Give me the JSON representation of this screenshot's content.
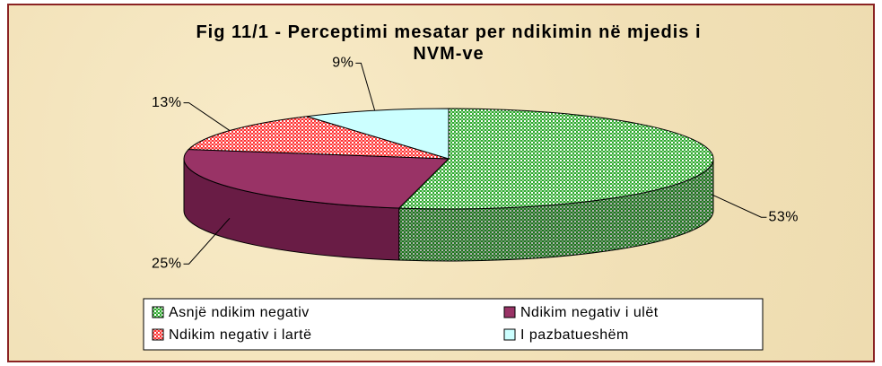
{
  "chart_data": {
    "type": "pie",
    "title": "Fig 11/1 - Perceptimi mesatar per ndikimin në mjedis i NVM-ve",
    "categories": [
      "Asnjë ndikim negativ",
      "Ndikim negativ i ulët",
      "Ndikim negativ i lartë",
      "I pazbatueshëm"
    ],
    "values": [
      53,
      25,
      13,
      9
    ],
    "value_labels": [
      "53%",
      "25%",
      "13%",
      "9%"
    ],
    "colors": [
      "#2eaa2e",
      "#993366",
      "#ff3333",
      "#ccffff"
    ],
    "patterns": [
      "checker",
      "solid",
      "checker",
      "solid"
    ],
    "legend": "bottom"
  }
}
